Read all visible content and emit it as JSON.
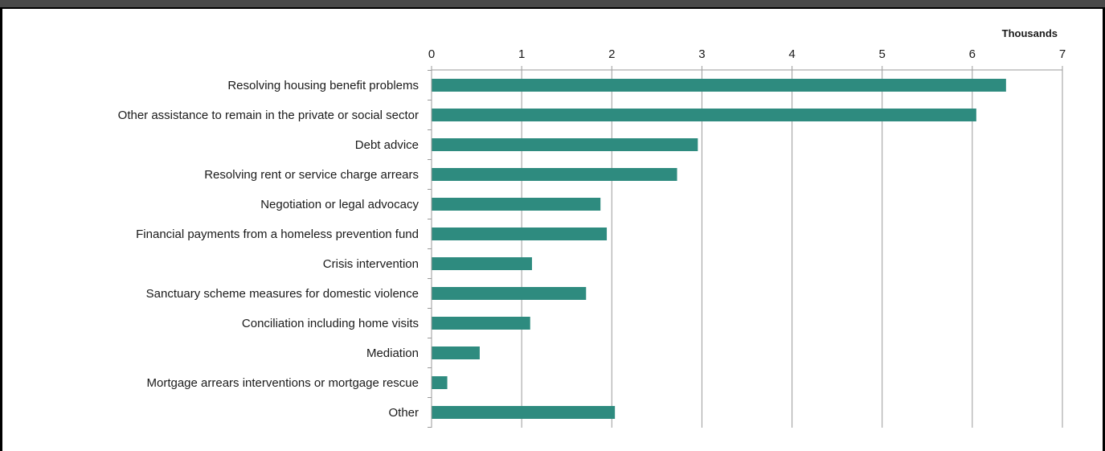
{
  "chart_data": {
    "type": "bar",
    "orientation": "horizontal",
    "axis_position": "top",
    "unit_label": "Thousands",
    "xlim": [
      0,
      7
    ],
    "ticks": [
      "0",
      "1",
      "2",
      "3",
      "4",
      "5",
      "6",
      "7"
    ],
    "grid": true,
    "bar_color": "#2e8b7f",
    "categories": [
      "Resolving housing benefit problems",
      "Other assistance to remain in the private or social sector",
      "Debt advice",
      "Resolving rent or service charge arrears",
      "Negotiation or legal advocacy ",
      "Financial payments from a homeless prevention fund",
      "Crisis intervention ",
      "Sanctuary scheme measures for domestic violence",
      "Conciliation including home visits",
      "Mediation",
      "Mortgage arrears interventions or mortgage rescue",
      "Other"
    ],
    "values": [
      6.37,
      6.04,
      2.95,
      2.72,
      1.87,
      1.94,
      1.11,
      1.71,
      1.09,
      0.53,
      0.17,
      2.03
    ]
  }
}
